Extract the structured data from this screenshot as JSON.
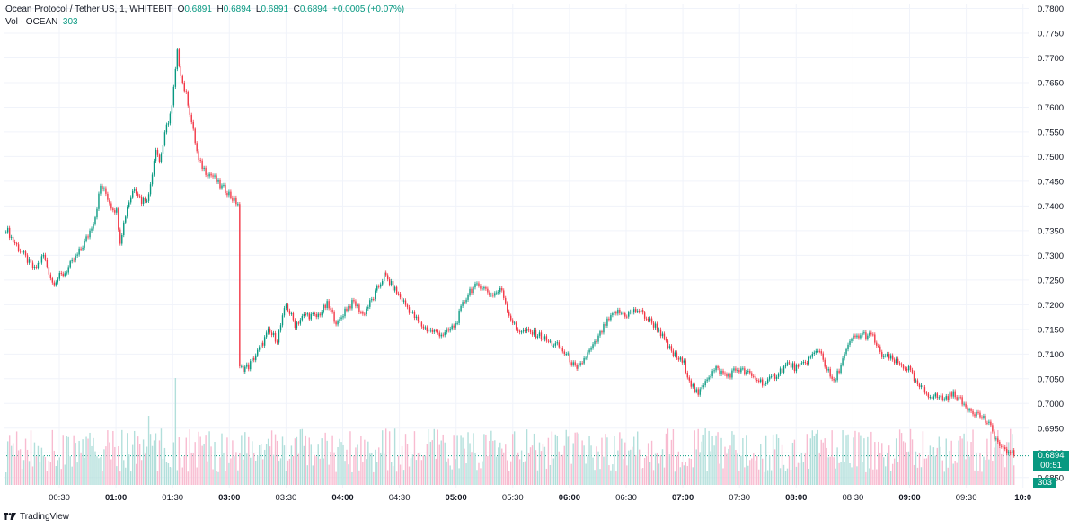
{
  "header": {
    "symbol": "Ocean Protocol / Tether US, 1, WHITEBIT",
    "o_label": "O",
    "o_value": "0.6891",
    "h_label": "H",
    "h_value": "0.6894",
    "l_label": "L",
    "l_value": "0.6891",
    "c_label": "C",
    "c_value": "0.6894",
    "change": "+0.0005 (+0.07%)",
    "vol_label": "Vol · OCEAN",
    "vol_value": "303"
  },
  "last_price_tag": {
    "price": "0.6894",
    "countdown": "00:51"
  },
  "volume_tag": "303",
  "branding": "TradingView",
  "colors": {
    "up": "#089981",
    "down": "#f23645",
    "up_vol": "#b2dfdb",
    "down_vol": "#f8bbd0"
  },
  "chart_data": {
    "type": "candlestick",
    "interval": "1",
    "y_axis_ticks": [
      "0.7800",
      "0.7750",
      "0.7700",
      "0.7650",
      "0.7600",
      "0.7550",
      "0.7500",
      "0.7450",
      "0.7400",
      "0.7350",
      "0.7300",
      "0.7250",
      "0.7200",
      "0.7150",
      "0.7100",
      "0.7050",
      "0.7000",
      "0.6950",
      "0.6900",
      "0.6850"
    ],
    "ylim": [
      0.6835,
      0.781
    ],
    "x_axis_ticks": [
      {
        "label": "00:30",
        "bold": false
      },
      {
        "label": "01:00",
        "bold": true
      },
      {
        "label": "01:30",
        "bold": false
      },
      {
        "label": "03:00",
        "bold": true
      },
      {
        "label": "03:30",
        "bold": false
      },
      {
        "label": "04:00",
        "bold": true
      },
      {
        "label": "04:30",
        "bold": false
      },
      {
        "label": "05:00",
        "bold": true
      },
      {
        "label": "05:30",
        "bold": false
      },
      {
        "label": "06:00",
        "bold": true
      },
      {
        "label": "06:30",
        "bold": false
      },
      {
        "label": "07:00",
        "bold": true
      },
      {
        "label": "07:30",
        "bold": false
      },
      {
        "label": "08:00",
        "bold": true
      },
      {
        "label": "08:30",
        "bold": false
      },
      {
        "label": "09:00",
        "bold": true
      },
      {
        "label": "09:30",
        "bold": false
      },
      {
        "label": "10:0",
        "bold": true
      }
    ],
    "price_path": [
      [
        0,
        0.7355
      ],
      [
        4,
        0.733
      ],
      [
        10,
        0.73
      ],
      [
        16,
        0.727
      ],
      [
        21,
        0.73
      ],
      [
        26,
        0.7245
      ],
      [
        33,
        0.7265
      ],
      [
        40,
        0.73
      ],
      [
        46,
        0.734
      ],
      [
        50,
        0.738
      ],
      [
        53,
        0.744
      ],
      [
        56,
        0.7425
      ],
      [
        59,
        0.74
      ],
      [
        62,
        0.739
      ],
      [
        64,
        0.733
      ],
      [
        68,
        0.74
      ],
      [
        72,
        0.744
      ],
      [
        76,
        0.741
      ],
      [
        80,
        0.742
      ],
      [
        84,
        0.752
      ],
      [
        86,
        0.749
      ],
      [
        90,
        0.756
      ],
      [
        93,
        0.76
      ],
      [
        96,
        0.771
      ],
      [
        99,
        0.765
      ],
      [
        102,
        0.761
      ],
      [
        105,
        0.755
      ],
      [
        108,
        0.749
      ],
      [
        112,
        0.747
      ],
      [
        116,
        0.746
      ],
      [
        120,
        0.744
      ],
      [
        124,
        0.743
      ],
      [
        128,
        0.741
      ],
      [
        130,
        0.7405
      ],
      [
        131,
        0.707
      ],
      [
        136,
        0.7075
      ],
      [
        142,
        0.711
      ],
      [
        147,
        0.7145
      ],
      [
        152,
        0.713
      ],
      [
        157,
        0.72
      ],
      [
        162,
        0.716
      ],
      [
        168,
        0.718
      ],
      [
        174,
        0.7175
      ],
      [
        180,
        0.72
      ],
      [
        186,
        0.716
      ],
      [
        190,
        0.719
      ],
      [
        195,
        0.7205
      ],
      [
        200,
        0.718
      ],
      [
        206,
        0.7215
      ],
      [
        212,
        0.726
      ],
      [
        216,
        0.724
      ],
      [
        220,
        0.722
      ],
      [
        224,
        0.72
      ],
      [
        228,
        0.718
      ],
      [
        232,
        0.716
      ],
      [
        236,
        0.715
      ],
      [
        240,
        0.7145
      ],
      [
        246,
        0.714
      ],
      [
        252,
        0.716
      ],
      [
        256,
        0.72
      ],
      [
        260,
        0.723
      ],
      [
        266,
        0.724
      ],
      [
        272,
        0.722
      ],
      [
        278,
        0.723
      ],
      [
        282,
        0.718
      ],
      [
        286,
        0.715
      ],
      [
        292,
        0.7145
      ],
      [
        298,
        0.714
      ],
      [
        304,
        0.7125
      ],
      [
        310,
        0.7115
      ],
      [
        316,
        0.709
      ],
      [
        320,
        0.7065
      ],
      [
        324,
        0.709
      ],
      [
        330,
        0.712
      ],
      [
        336,
        0.716
      ],
      [
        342,
        0.7185
      ],
      [
        348,
        0.718
      ],
      [
        354,
        0.719
      ],
      [
        360,
        0.717
      ],
      [
        366,
        0.715
      ],
      [
        370,
        0.712
      ],
      [
        374,
        0.71
      ],
      [
        380,
        0.708
      ],
      [
        384,
        0.704
      ],
      [
        388,
        0.7015
      ],
      [
        392,
        0.705
      ],
      [
        398,
        0.707
      ],
      [
        404,
        0.7055
      ],
      [
        410,
        0.707
      ],
      [
        416,
        0.706
      ],
      [
        420,
        0.705
      ],
      [
        426,
        0.704
      ],
      [
        432,
        0.706
      ],
      [
        438,
        0.708
      ],
      [
        444,
        0.707
      ],
      [
        450,
        0.709
      ],
      [
        456,
        0.711
      ],
      [
        460,
        0.707
      ],
      [
        464,
        0.704
      ],
      [
        468,
        0.708
      ],
      [
        474,
        0.713
      ],
      [
        480,
        0.714
      ],
      [
        486,
        0.7135
      ],
      [
        490,
        0.71
      ],
      [
        496,
        0.709
      ],
      [
        500,
        0.708
      ],
      [
        506,
        0.707
      ],
      [
        510,
        0.704
      ],
      [
        516,
        0.702
      ],
      [
        520,
        0.7015
      ],
      [
        526,
        0.701
      ],
      [
        532,
        0.702
      ],
      [
        536,
        0.7
      ],
      [
        540,
        0.699
      ],
      [
        544,
        0.698
      ],
      [
        548,
        0.697
      ],
      [
        552,
        0.695
      ],
      [
        556,
        0.692
      ],
      [
        560,
        0.69
      ],
      [
        563,
        0.6905
      ],
      [
        565,
        0.6894
      ]
    ],
    "volume_spikes": [
      [
        80,
        0.55
      ],
      [
        95,
        0.85
      ],
      [
        186,
        0.3
      ],
      [
        205,
        0.25
      ],
      [
        350,
        0.28
      ],
      [
        464,
        0.22
      ],
      [
        562,
        0.34
      ]
    ]
  }
}
